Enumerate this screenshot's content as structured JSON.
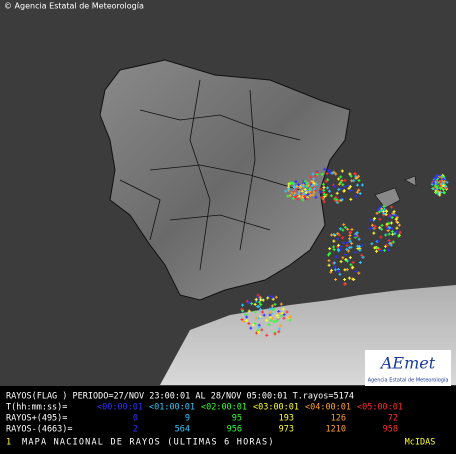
{
  "credit": "© Agencia Estatal de Meteorología",
  "logo": {
    "name": "AEmet",
    "subtitle": "Agencia Estatal de Meteorología"
  },
  "legend": {
    "header": "RAYOS(FLAG ) PERIODO=27/NOV 23:00:01 AL 28/NOV 05:00:01 T.rayos=5174",
    "time_label": "T(hh:mm:ss)=",
    "times": [
      "<00:00:01",
      "<01:00:01",
      "<02:00:01",
      "<03:00:01",
      "<04:00:01",
      "<05:00:01"
    ],
    "colors": [
      "#3030ff",
      "#30c8ff",
      "#30ff30",
      "#ffff30",
      "#ffa030",
      "#ff3030"
    ],
    "positive_label": "RAYOS+(495)=",
    "positive": [
      "0",
      "9",
      "95",
      "193",
      "126",
      "72"
    ],
    "negative_label": "RAYOS-(4663)=",
    "negative": [
      "2",
      "564",
      "956",
      "973",
      "1210",
      "958"
    ]
  },
  "footer": {
    "frame": "1",
    "title": "MAPA NACIONAL DE RAYOS (ULTIMAS 6 HORAS)",
    "system": "McIDAS"
  }
}
